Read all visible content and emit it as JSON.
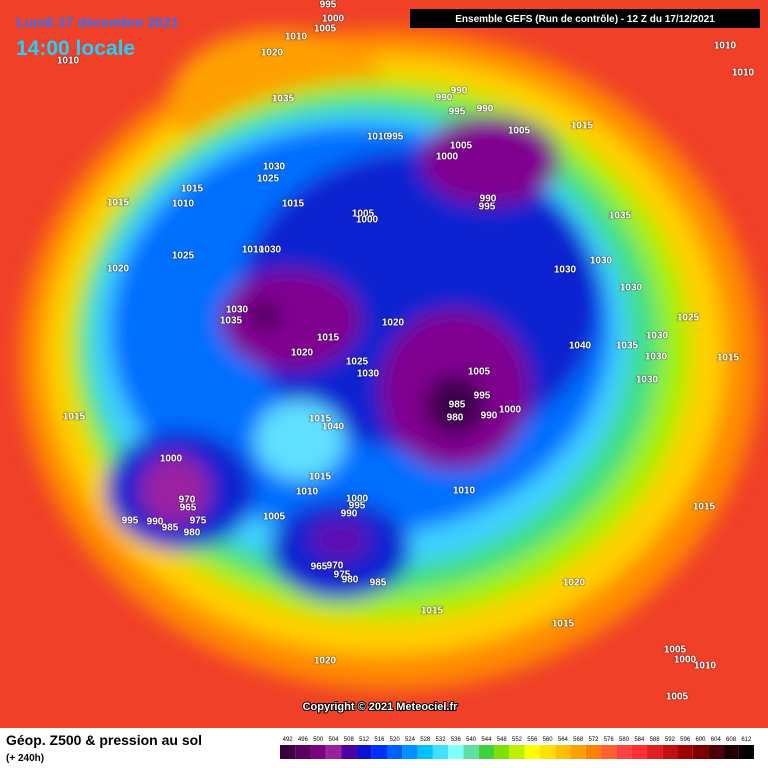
{
  "header": {
    "date": "Lundi 27 décembre 2021",
    "time": "14:00 locale",
    "model": "Ensemble GEFS  (Run de contrôle)  -  12 Z du 17/12/2021"
  },
  "map": {
    "pressure_labels": [
      995,
      1000,
      1005,
      1010,
      1010,
      1020,
      1035,
      1030,
      1025,
      1015,
      1015,
      1010,
      1015,
      1010,
      995,
      990,
      990,
      995,
      990,
      1005,
      1015,
      1005,
      1000,
      990,
      995,
      1005,
      1000,
      1035,
      1010,
      1010,
      1020,
      1025,
      1010,
      1030,
      1030,
      1030,
      1030,
      1030,
      1035,
      1020,
      1015,
      1020,
      1025,
      1030,
      1025,
      1040,
      1035,
      1030,
      1030,
      1015,
      1030,
      1005,
      995,
      990,
      1000,
      985,
      980,
      1015,
      1040,
      1015,
      1010,
      1000,
      970,
      965,
      975,
      990,
      995,
      985,
      980,
      1015,
      1010,
      1005,
      1000,
      995,
      990,
      965,
      970,
      975,
      980,
      985,
      1015,
      1020,
      1015,
      1015,
      1005,
      1000,
      1010,
      1005,
      1020
    ],
    "copyright": "Copyright © 2021 Meteociel.fr"
  },
  "footer": {
    "title": "Géop. Z500 & pression au sol",
    "subtitle": "(+ 240h)",
    "scale": [
      492,
      496,
      500,
      504,
      508,
      512,
      516,
      520,
      524,
      528,
      532,
      536,
      540,
      544,
      548,
      552,
      556,
      560,
      564,
      568,
      572,
      576,
      580,
      584,
      588,
      592,
      596,
      600,
      604,
      608,
      612
    ]
  }
}
